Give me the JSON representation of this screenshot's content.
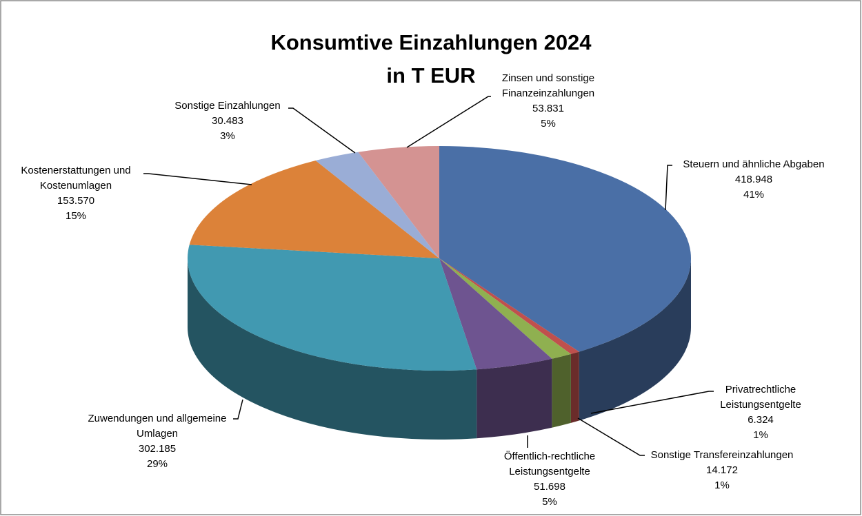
{
  "chart_data": {
    "type": "pie3d",
    "title": "Konsumtive Einzahlungen 2024 in T EUR",
    "categories": [
      "Steuern und ähnliche Abgaben",
      "Privatrechtliche Leistungsentgelte",
      "Sonstige Transfereinzahlungen",
      "Öffentlich-rechtliche Leistungsentgelte",
      "Zuwendungen und allgemeine Umlagen",
      "Kostenerstattungen und Kostenumlagen",
      "Sonstige Einzahlungen",
      "Zinsen und sonstige Finanzeinzahlungen"
    ],
    "values": [
      418948,
      6324,
      14172,
      51698,
      302185,
      153570,
      30483,
      53831
    ],
    "value_labels": [
      "418.948",
      "6.324",
      "14.172",
      "51.698",
      "302.185",
      "153.570",
      "30.483",
      "53.831"
    ],
    "percent_labels": [
      "41%",
      "1%",
      "1%",
      "5%",
      "29%",
      "15%",
      "3%",
      "5%"
    ],
    "colors": [
      "#4a6fa6",
      "#c0504d",
      "#8fb050",
      "#6e5490",
      "#4199b1",
      "#dc8239",
      "#9aadd6",
      "#d49392"
    ]
  }
}
